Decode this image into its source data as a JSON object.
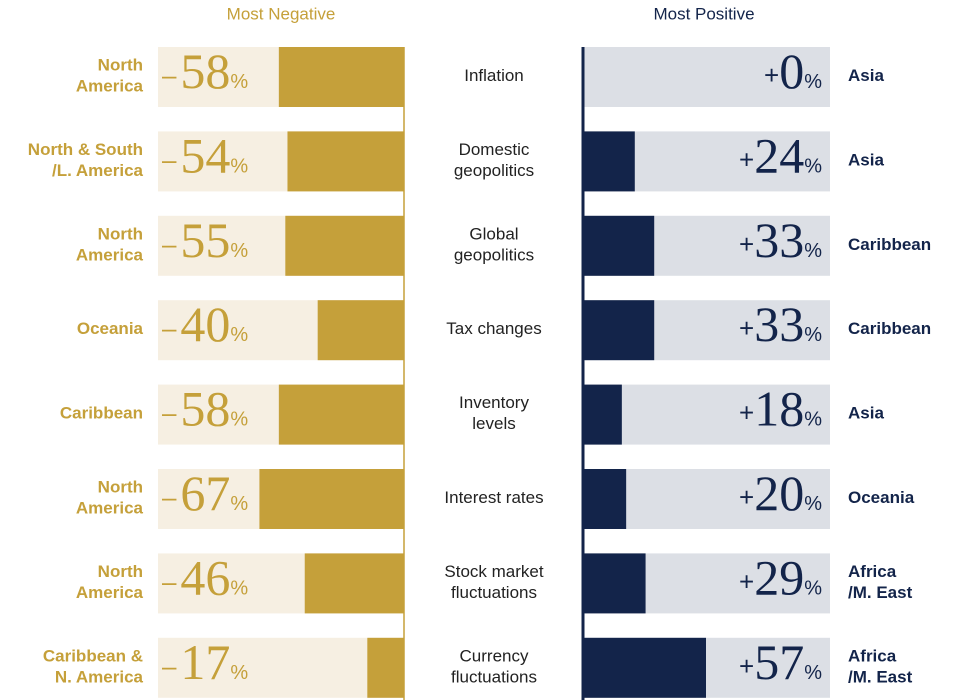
{
  "chart_data": {
    "type": "diverging-bar",
    "categories": [
      "Inflation",
      "Domestic\ngeopolitics",
      "Global\ngeopolitics",
      "Tax changes",
      "Inventory\nlevels",
      "Interest rates",
      "Stock market\nfluctuations",
      "Currency\nfluctuations"
    ],
    "xlim": [
      -114,
      114
    ],
    "series": [
      {
        "name": "Most Negative",
        "color": "#c5a03a",
        "track_color": "#f6efe2",
        "values": [
          -58,
          -54,
          -55,
          -40,
          -58,
          -67,
          -46,
          -17
        ],
        "value_labels": [
          "– 58%",
          "– 54%",
          "– 55%",
          "– 40%",
          "– 58%",
          "– 67%",
          "– 46%",
          "– 17%"
        ],
        "regions": [
          "North\nAmerica",
          "North & South\n/L. America",
          "North\nAmerica",
          "Oceania",
          "Caribbean",
          "North\nAmerica",
          "North\nAmerica",
          "Caribbean &\nN. America"
        ]
      },
      {
        "name": "Most Positive",
        "color": "#13244a",
        "track_color": "#dcdfe5",
        "values": [
          0,
          24,
          33,
          33,
          18,
          20,
          29,
          57
        ],
        "value_labels": [
          "+0%",
          "+24%",
          "+33%",
          "+33%",
          "+18%",
          "+20%",
          "+29%",
          "+57%"
        ],
        "regions": [
          "Asia",
          "Asia",
          "Caribbean",
          "Caribbean",
          "Asia",
          "Oceania",
          "Africa\n/M. East",
          "Africa\n/M. East"
        ]
      }
    ]
  }
}
